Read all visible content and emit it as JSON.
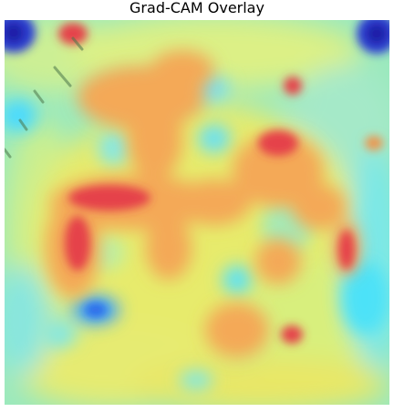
{
  "figure": {
    "title": "Grad-CAM Overlay"
  },
  "heatmap": {
    "colormap": "jet",
    "base_color": "#8ee8b0"
  }
}
